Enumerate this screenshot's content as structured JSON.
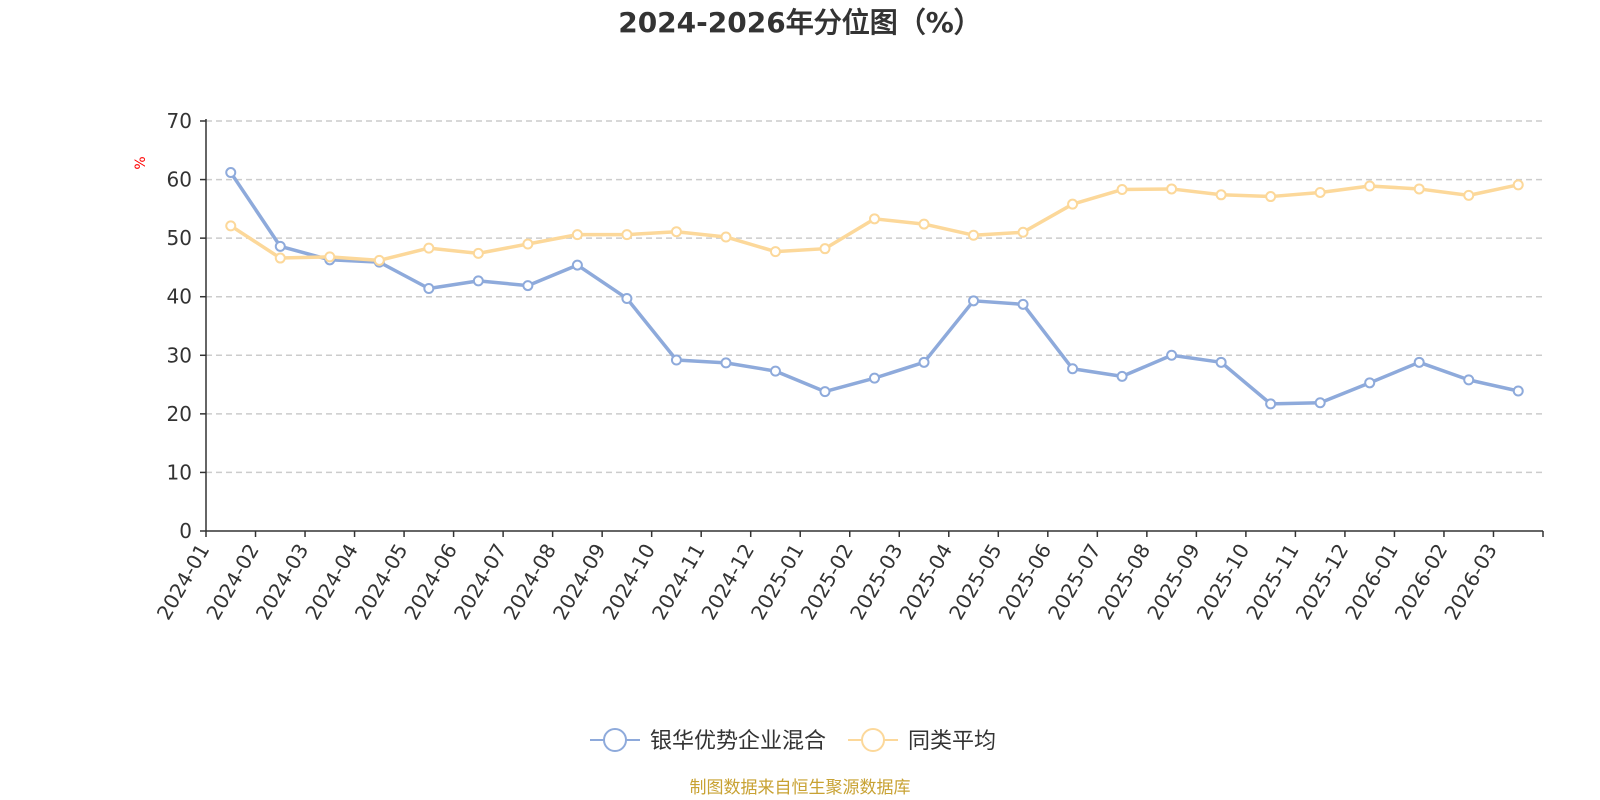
{
  "chart_data": {
    "type": "line",
    "title": "2024-2026年分位图（%）",
    "ylabel": "%",
    "ylim": [
      0,
      70
    ],
    "yticks": [
      0,
      10,
      20,
      30,
      40,
      50,
      60,
      70
    ],
    "grid": true,
    "legend_position": "bottom-center",
    "categories": [
      "2024-01",
      "2024-02",
      "2024-03",
      "2024-04",
      "2024-05",
      "2024-06",
      "2024-07",
      "2024-08",
      "2024-09",
      "2024-10",
      "2024-11",
      "2024-12",
      "2025-01",
      "2025-02",
      "2025-03",
      "2025-04",
      "2025-05",
      "2025-06",
      "2025-07",
      "2025-08",
      "2025-09",
      "2025-10",
      "2025-11",
      "2025-12",
      "2026-01",
      "2026-02",
      "2026-03"
    ],
    "series": [
      {
        "name": "银华优势企业混合",
        "color": "#8eaadb",
        "values": [
          61.2,
          48.6,
          46.3,
          45.9,
          41.4,
          42.7,
          41.9,
          45.4,
          39.7,
          29.2,
          28.7,
          27.3,
          23.8,
          26.1,
          28.8,
          39.3,
          38.7,
          27.7,
          26.4,
          30.0,
          28.8,
          21.7,
          21.9,
          25.3,
          28.8,
          25.8,
          23.9
        ]
      },
      {
        "name": "同类平均",
        "color": "#fcd89a",
        "values": [
          52.1,
          46.6,
          46.8,
          46.2,
          48.3,
          47.4,
          49.0,
          50.6,
          50.6,
          51.1,
          50.2,
          47.7,
          48.2,
          53.3,
          52.4,
          50.5,
          51.0,
          55.8,
          58.3,
          58.4,
          57.4,
          57.1,
          57.8,
          58.9,
          58.4,
          57.3,
          59.1
        ]
      }
    ]
  },
  "source_text": "制图数据来自恒生聚源数据库",
  "colors": {
    "axis": "#333333",
    "grid": "#cccccc",
    "unit_label": "#ff0000",
    "source_text": "#c8a233"
  }
}
